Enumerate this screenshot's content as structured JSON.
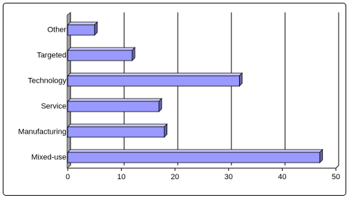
{
  "chart_data": {
    "type": "bar",
    "orientation": "horizontal",
    "categories": [
      "Other",
      "Targeted",
      "Technology",
      "Service",
      "Manufacturing",
      "Mixed-use"
    ],
    "values": [
      5,
      12,
      32,
      17,
      18,
      47
    ],
    "color": "#9999ff",
    "xlim": [
      0,
      50
    ],
    "xticks": [
      0,
      10,
      20,
      30,
      40,
      50
    ],
    "grid": true
  }
}
